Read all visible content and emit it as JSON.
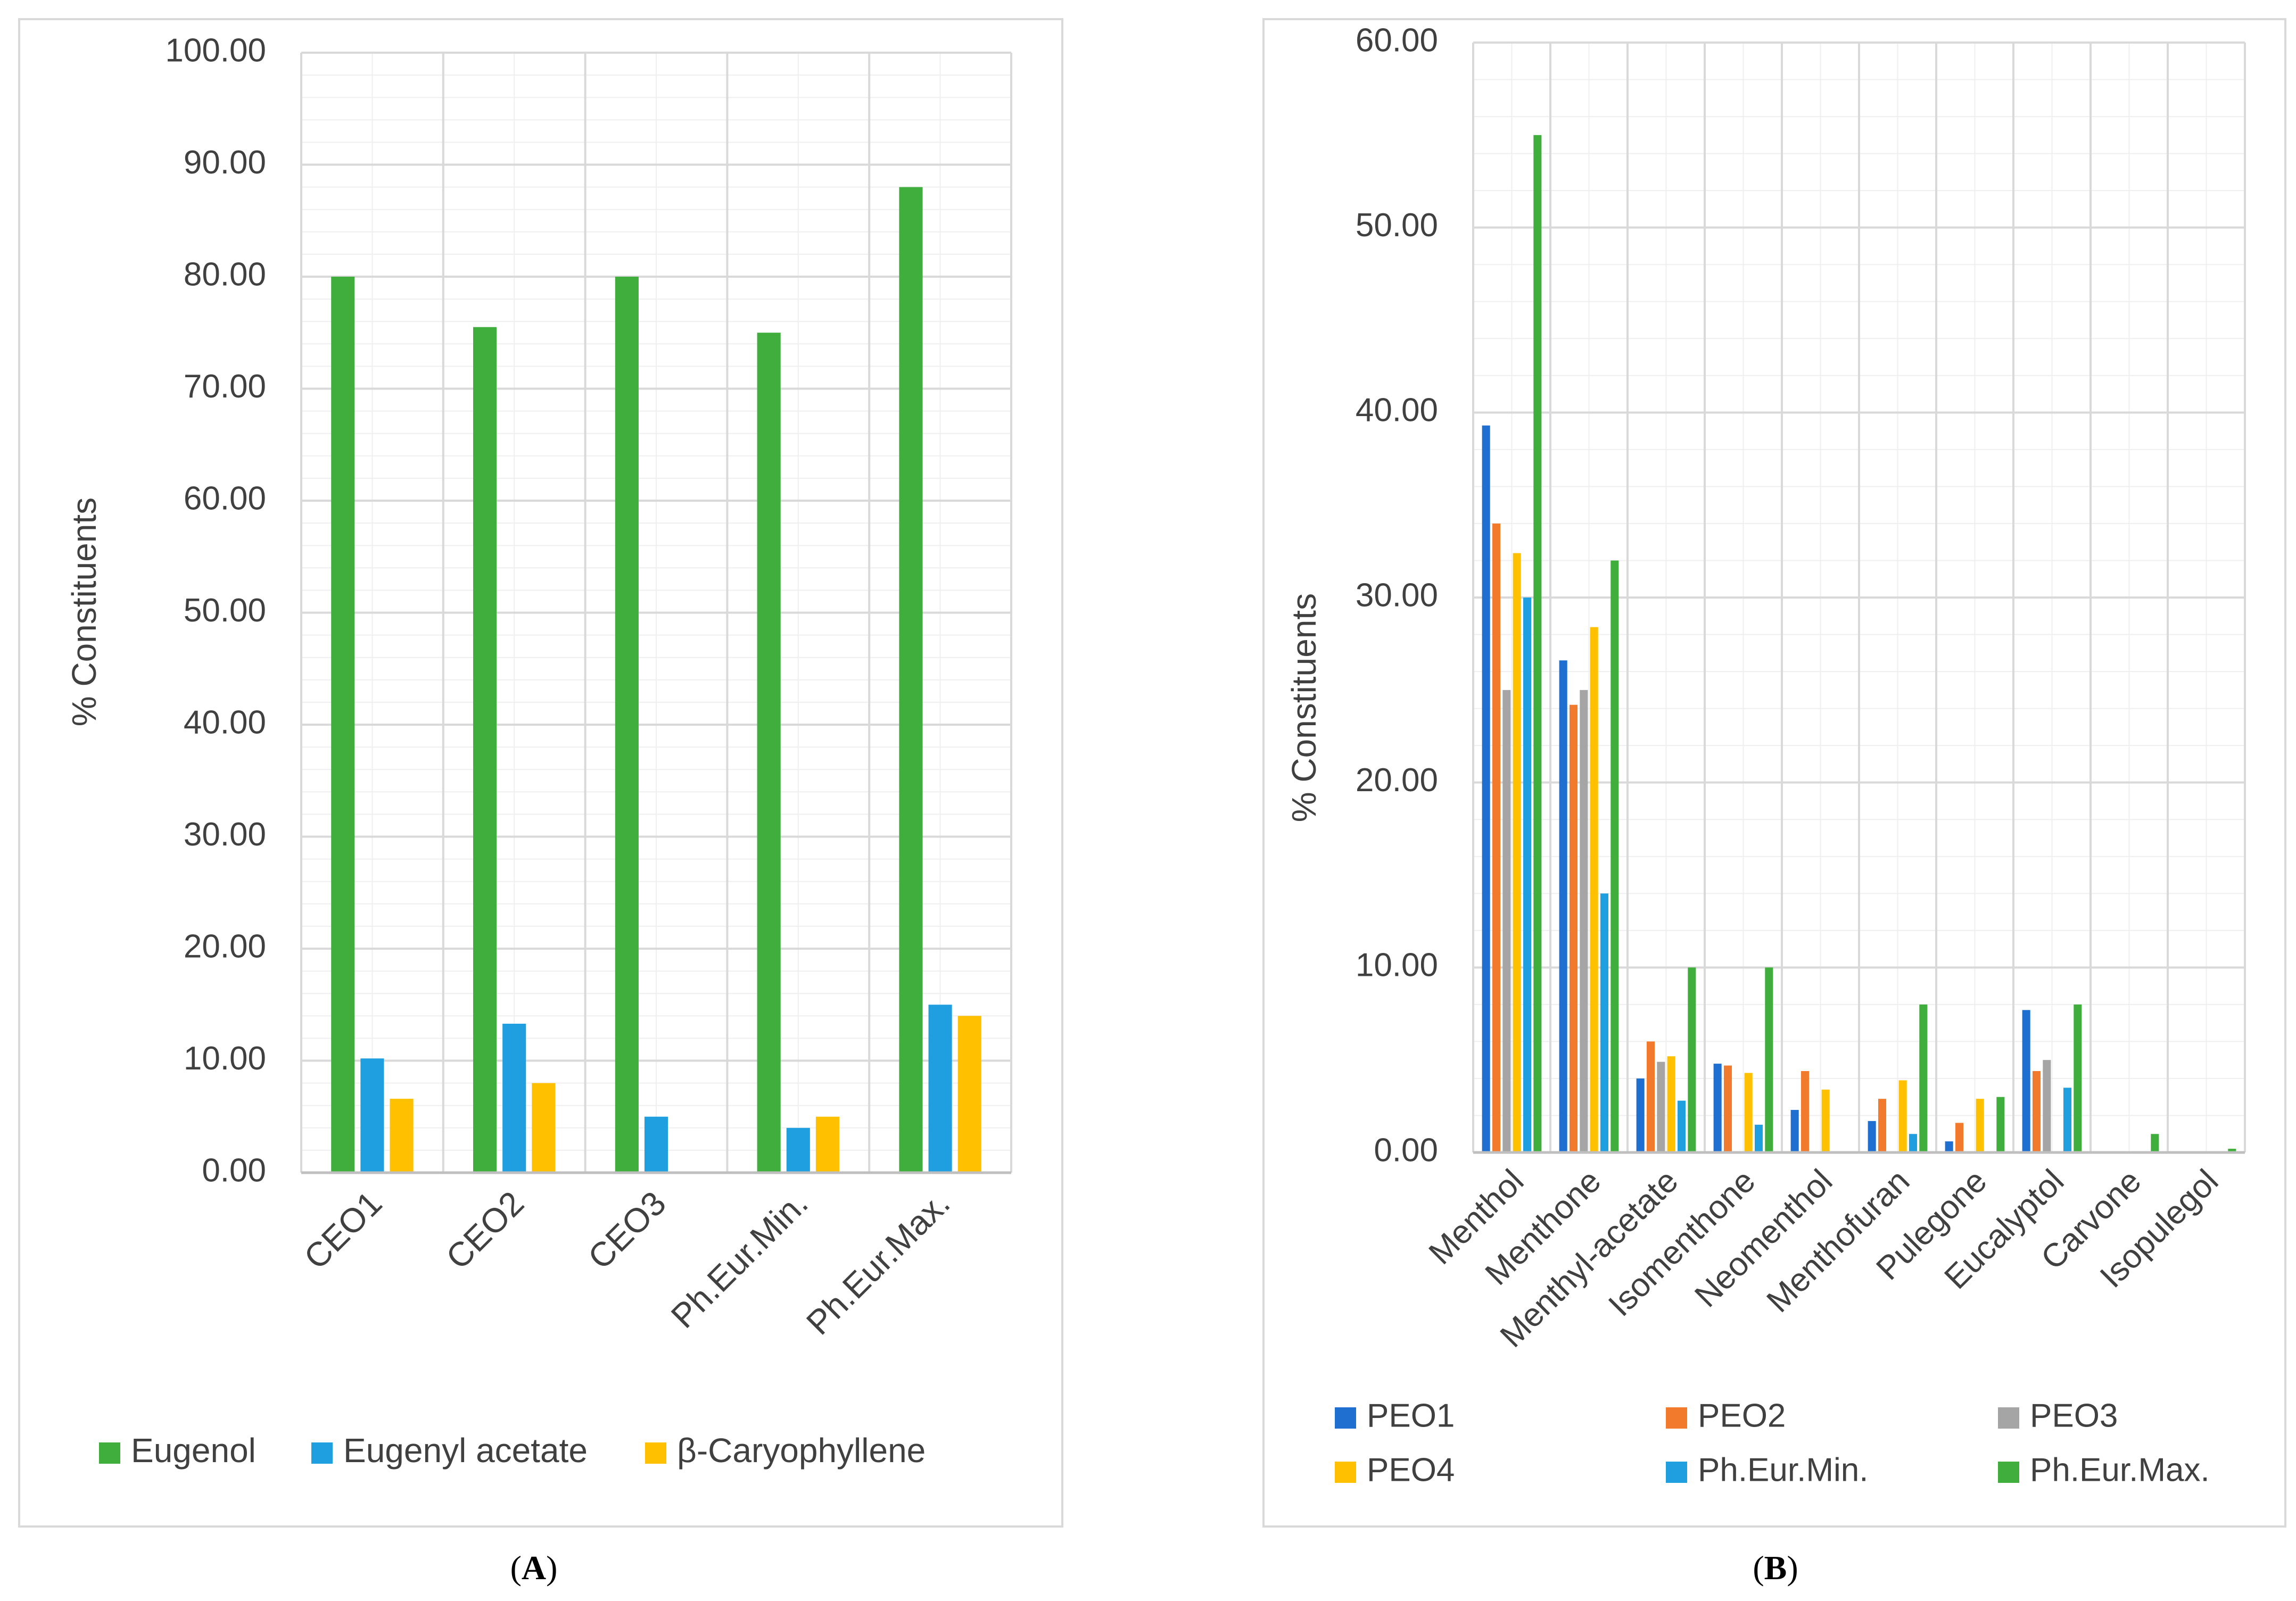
{
  "colors": {
    "grid": "#d9d9d9",
    "axis": "#bfbfbf",
    "frame": "#d9d9d9",
    "text": "#404040"
  },
  "chart_data": [
    {
      "type": "bar",
      "panel_label": "A",
      "ylabel": "% Constituents",
      "xlabel": "",
      "ylim": [
        0,
        100
      ],
      "ytick_step": 10,
      "yminor_step": 2,
      "tick_decimals": 2,
      "legend_position": "bottom",
      "categories": [
        "CEO1",
        "CEO2",
        "CEO3",
        "Ph.Eur.Min.",
        "Ph.Eur.Max."
      ],
      "series": [
        {
          "name": "Eugenol",
          "color": "#3fae3c",
          "values": [
            80.0,
            75.5,
            80.0,
            75.0,
            88.0
          ]
        },
        {
          "name": "Eugenyl acetate",
          "color": "#1f9fe0",
          "values": [
            10.2,
            13.3,
            5.0,
            4.0,
            15.0
          ]
        },
        {
          "name": "β-Caryophyllene",
          "color": "#ffc000",
          "values": [
            6.6,
            8.0,
            0,
            5.0,
            14.0
          ]
        }
      ]
    },
    {
      "type": "bar",
      "panel_label": "B",
      "ylabel": "% Constituents",
      "xlabel": "",
      "ylim": [
        0,
        60
      ],
      "ytick_step": 10,
      "yminor_step": 2,
      "tick_decimals": 2,
      "legend_position": "bottom",
      "categories": [
        "Menthol",
        "Menthone",
        "Menthyl-acetate",
        "Isomenthone",
        "Neomenthol",
        "Menthofuran",
        "Pulegone",
        "Eucalyptol",
        "Carvone",
        "Isopulegol"
      ],
      "series": [
        {
          "name": "PEO1",
          "color": "#1f6fd1",
          "values": [
            39.3,
            26.6,
            4.0,
            4.8,
            2.3,
            1.7,
            0.6,
            7.7,
            0,
            0
          ]
        },
        {
          "name": "PEO2",
          "color": "#f27a2c",
          "values": [
            34.0,
            24.2,
            6.0,
            4.7,
            4.4,
            2.9,
            1.6,
            4.4,
            0,
            0
          ]
        },
        {
          "name": "PEO3",
          "color": "#a5a5a5",
          "values": [
            25.0,
            25.0,
            4.9,
            0,
            0,
            0,
            0,
            5.0,
            0,
            0
          ]
        },
        {
          "name": "PEO4",
          "color": "#ffc000",
          "values": [
            32.4,
            28.4,
            5.2,
            4.3,
            3.4,
            3.9,
            2.9,
            0,
            0,
            0
          ]
        },
        {
          "name": "Ph.Eur.Min.",
          "color": "#1f9fe0",
          "values": [
            30.0,
            14.0,
            2.8,
            1.5,
            0,
            1.0,
            0,
            3.5,
            0,
            0
          ]
        },
        {
          "name": "Ph.Eur.Max.",
          "color": "#3fae3c",
          "values": [
            55.0,
            32.0,
            10.0,
            10.0,
            0,
            8.0,
            3.0,
            8.0,
            1.0,
            0.2
          ]
        }
      ]
    }
  ]
}
